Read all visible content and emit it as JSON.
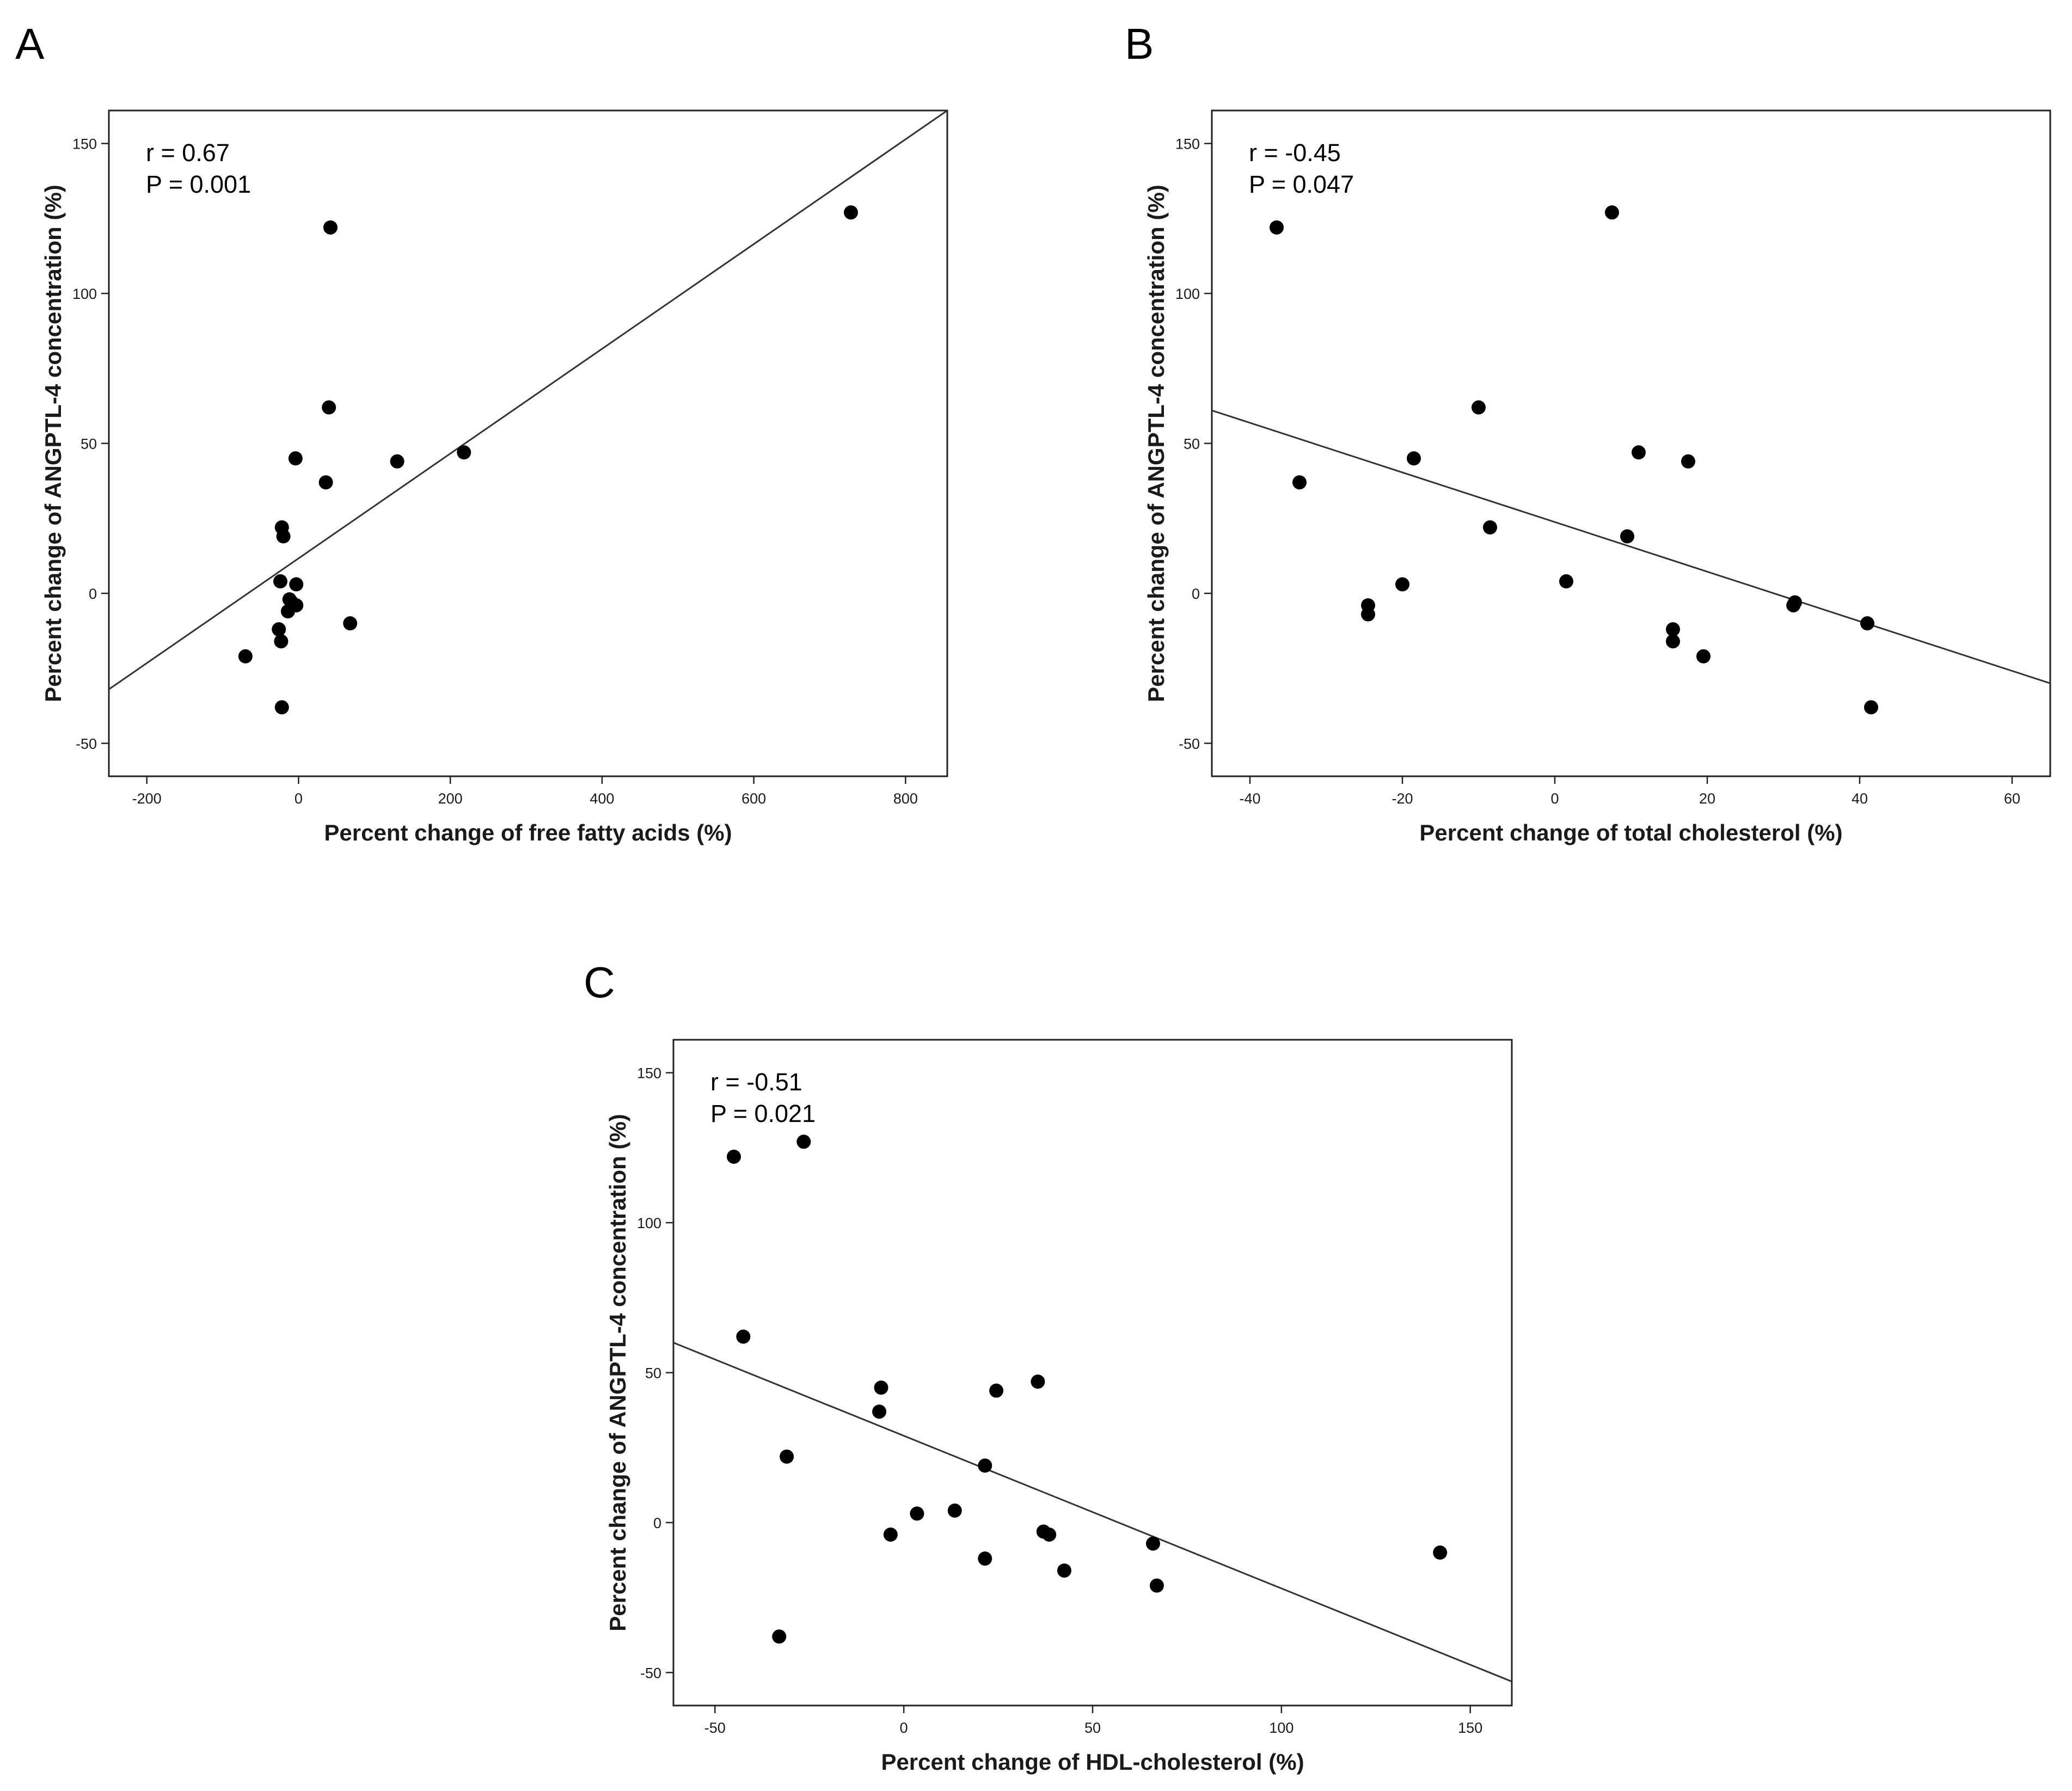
{
  "colors": {
    "points": "#000000",
    "line": "#333333",
    "frame": "#222222"
  },
  "chart_data": [
    {
      "panel": "A",
      "type": "scatter",
      "xlabel": "Percent change of free fatty acids (%)",
      "ylabel": "Percent change of ANGPTL-4 concentration (%)",
      "xlim": [
        -250,
        855
      ],
      "ylim": [
        -61,
        161
      ],
      "xticks": [
        -200,
        0,
        200,
        400,
        600,
        800
      ],
      "yticks": [
        -50,
        0,
        50,
        100,
        150
      ],
      "xtick_labels": [
        "-200",
        "0",
        "200",
        "400",
        "600",
        "800"
      ],
      "ytick_labels": [
        "-50",
        "0",
        "50",
        "100",
        "150"
      ],
      "r_text": "r = 0.67",
      "p_text": "P = 0.001",
      "fit_line": {
        "x": [
          -250,
          855
        ],
        "y": [
          -32,
          161
        ]
      },
      "x": [
        42,
        728,
        40,
        130,
        218,
        -4,
        36,
        -22,
        -20,
        -24,
        -3,
        -12,
        -9,
        -14,
        -3,
        -26,
        68,
        -23,
        -70,
        -22
      ],
      "y": [
        122,
        127,
        62,
        44,
        47,
        45,
        37,
        22,
        19,
        4,
        3,
        -2,
        -3,
        -6,
        -4,
        -12,
        -10,
        -16,
        -21,
        -38
      ]
    },
    {
      "panel": "B",
      "type": "scatter",
      "xlabel": "Percent change of total cholesterol (%)",
      "ylabel": "Percent change of ANGPTL-4 concentration (%)",
      "xlim": [
        -45,
        65
      ],
      "ylim": [
        -61,
        161
      ],
      "xticks": [
        -40,
        -20,
        0,
        20,
        40,
        60
      ],
      "yticks": [
        -50,
        0,
        50,
        100,
        150
      ],
      "xtick_labels": [
        "-40",
        "-20",
        "0",
        "20",
        "40",
        "60"
      ],
      "ytick_labels": [
        "-50",
        "0",
        "50",
        "100",
        "150"
      ],
      "r_text": "r = -0.45",
      "p_text": "P = 0.047",
      "fit_line": {
        "x": [
          -45,
          65
        ],
        "y": [
          61,
          -30
        ]
      },
      "x": [
        -36.5,
        7.5,
        -33.5,
        -10,
        -18.5,
        11,
        17.5,
        -8.5,
        9.5,
        1.5,
        -20,
        -24.5,
        -24.5,
        31.5,
        31.3,
        15.5,
        15.5,
        41,
        19.5,
        41.5
      ],
      "y": [
        122,
        127,
        37,
        62,
        45,
        47,
        44,
        22,
        19,
        4,
        3,
        -4,
        -7,
        -3,
        -4,
        -12,
        -16,
        -10,
        -21,
        -38
      ]
    },
    {
      "panel": "C",
      "type": "scatter",
      "xlabel": "Percent change of HDL-cholesterol (%)",
      "ylabel": "Percent change of ANGPTL-4 concentration (%)",
      "xlim": [
        -61,
        161
      ],
      "ylim": [
        -61,
        161
      ],
      "xticks": [
        -50,
        0,
        50,
        100,
        150
      ],
      "yticks": [
        -50,
        0,
        50,
        100,
        150
      ],
      "xtick_labels": [
        "-50",
        "0",
        "50",
        "100",
        "150"
      ],
      "ytick_labels": [
        "-50",
        "0",
        "50",
        "100",
        "150"
      ],
      "r_text": "r = -0.51",
      "p_text": "P = 0.021",
      "fit_line": {
        "x": [
          -61,
          161
        ],
        "y": [
          60,
          -53
        ]
      },
      "x": [
        -45,
        -26.5,
        -42.5,
        -6,
        24.5,
        35.5,
        -6.5,
        -31,
        21.5,
        13.5,
        3.5,
        -3.5,
        37,
        38.5,
        66,
        21.5,
        42.5,
        67,
        -33,
        142
      ],
      "y": [
        122,
        127,
        62,
        45,
        44,
        47,
        37,
        22,
        19,
        4,
        3,
        -4,
        -3,
        -4,
        -7,
        -12,
        -16,
        -21,
        -38,
        -10
      ]
    }
  ]
}
